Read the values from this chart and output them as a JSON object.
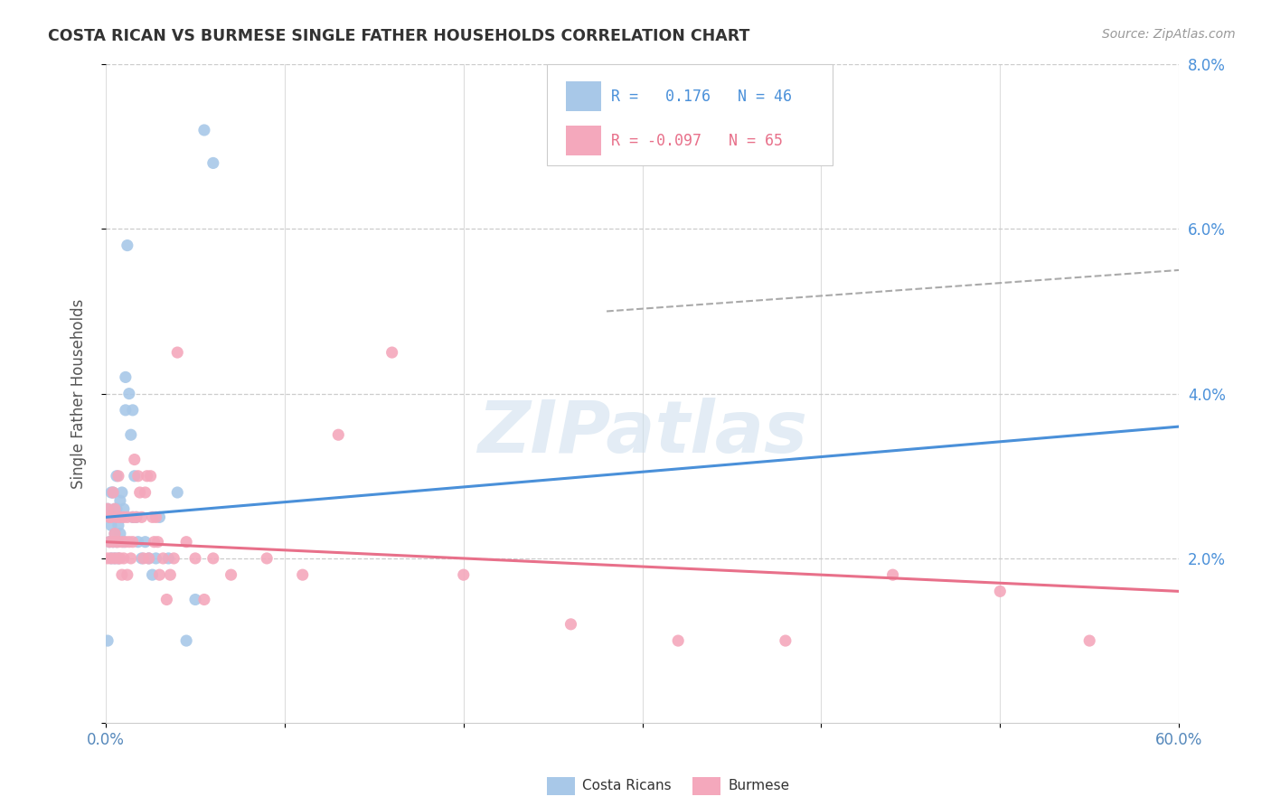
{
  "title": "COSTA RICAN VS BURMESE SINGLE FATHER HOUSEHOLDS CORRELATION CHART",
  "source": "Source: ZipAtlas.com",
  "ylabel": "Single Father Households",
  "x_min": 0.0,
  "x_max": 0.6,
  "y_min": 0.0,
  "y_max": 0.08,
  "costa_rican_R": 0.176,
  "costa_rican_N": 46,
  "burmese_R": -0.097,
  "burmese_N": 65,
  "costa_rican_color": "#a8c8e8",
  "burmese_color": "#f4a8bc",
  "costa_rican_line_color": "#4a90d9",
  "burmese_line_color": "#e8708a",
  "cr_line_x": [
    0.0,
    0.6
  ],
  "cr_line_y": [
    0.025,
    0.036
  ],
  "bm_line_x": [
    0.0,
    0.6
  ],
  "bm_line_y": [
    0.022,
    0.016
  ],
  "dash_line_x": [
    0.28,
    0.6
  ],
  "dash_line_y": [
    0.05,
    0.055
  ],
  "watermark_text": "ZIPatlas",
  "background_color": "#ffffff",
  "cr_x": [
    0.001,
    0.002,
    0.002,
    0.003,
    0.003,
    0.003,
    0.004,
    0.004,
    0.004,
    0.005,
    0.005,
    0.005,
    0.006,
    0.006,
    0.006,
    0.007,
    0.007,
    0.008,
    0.008,
    0.009,
    0.009,
    0.01,
    0.01,
    0.011,
    0.011,
    0.012,
    0.013,
    0.014,
    0.015,
    0.015,
    0.016,
    0.017,
    0.018,
    0.02,
    0.022,
    0.024,
    0.026,
    0.028,
    0.03,
    0.035,
    0.04,
    0.045,
    0.05,
    0.055,
    0.06,
    0.001
  ],
  "cr_y": [
    0.026,
    0.022,
    0.025,
    0.02,
    0.024,
    0.028,
    0.022,
    0.025,
    0.028,
    0.02,
    0.023,
    0.026,
    0.022,
    0.026,
    0.03,
    0.02,
    0.024,
    0.023,
    0.027,
    0.025,
    0.028,
    0.022,
    0.026,
    0.038,
    0.042,
    0.058,
    0.04,
    0.035,
    0.025,
    0.038,
    0.03,
    0.025,
    0.022,
    0.02,
    0.022,
    0.02,
    0.018,
    0.02,
    0.025,
    0.02,
    0.028,
    0.01,
    0.015,
    0.072,
    0.068,
    0.01
  ],
  "bm_x": [
    0.001,
    0.001,
    0.002,
    0.002,
    0.003,
    0.003,
    0.004,
    0.004,
    0.005,
    0.005,
    0.005,
    0.006,
    0.006,
    0.007,
    0.007,
    0.007,
    0.008,
    0.008,
    0.009,
    0.009,
    0.01,
    0.01,
    0.011,
    0.012,
    0.012,
    0.013,
    0.014,
    0.015,
    0.015,
    0.016,
    0.017,
    0.018,
    0.019,
    0.02,
    0.021,
    0.022,
    0.023,
    0.024,
    0.025,
    0.026,
    0.027,
    0.028,
    0.029,
    0.03,
    0.032,
    0.034,
    0.036,
    0.038,
    0.04,
    0.045,
    0.05,
    0.055,
    0.06,
    0.07,
    0.09,
    0.11,
    0.13,
    0.16,
    0.2,
    0.26,
    0.32,
    0.38,
    0.44,
    0.5,
    0.55
  ],
  "bm_y": [
    0.026,
    0.02,
    0.022,
    0.025,
    0.02,
    0.025,
    0.022,
    0.028,
    0.02,
    0.023,
    0.026,
    0.022,
    0.025,
    0.02,
    0.022,
    0.03,
    0.02,
    0.025,
    0.022,
    0.018,
    0.02,
    0.025,
    0.022,
    0.025,
    0.018,
    0.022,
    0.02,
    0.022,
    0.025,
    0.032,
    0.025,
    0.03,
    0.028,
    0.025,
    0.02,
    0.028,
    0.03,
    0.02,
    0.03,
    0.025,
    0.022,
    0.025,
    0.022,
    0.018,
    0.02,
    0.015,
    0.018,
    0.02,
    0.045,
    0.022,
    0.02,
    0.015,
    0.02,
    0.018,
    0.02,
    0.018,
    0.035,
    0.045,
    0.018,
    0.012,
    0.01,
    0.01,
    0.018,
    0.016,
    0.01
  ]
}
